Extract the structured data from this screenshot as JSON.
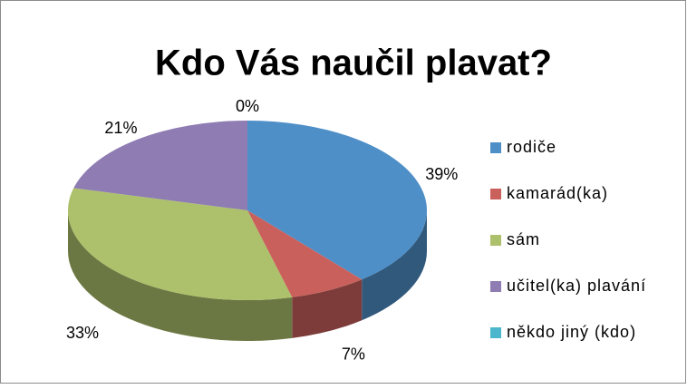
{
  "chart_data": {
    "type": "pie3d",
    "title": "Kdo Vás naučil plavat?",
    "categories": [
      "rodiče",
      "kamarád(ka)",
      "sám",
      "učitel(ka) plavání",
      "někdo jiný (kdo)"
    ],
    "values": [
      39,
      7,
      33,
      21,
      0
    ],
    "value_labels": [
      "39%",
      "7%",
      "33%",
      "21%",
      "0%"
    ],
    "colors": [
      "#4f8fc8",
      "#c9605c",
      "#adc16c",
      "#8e7cb3",
      "#4bb6cc"
    ],
    "legend": "right"
  }
}
